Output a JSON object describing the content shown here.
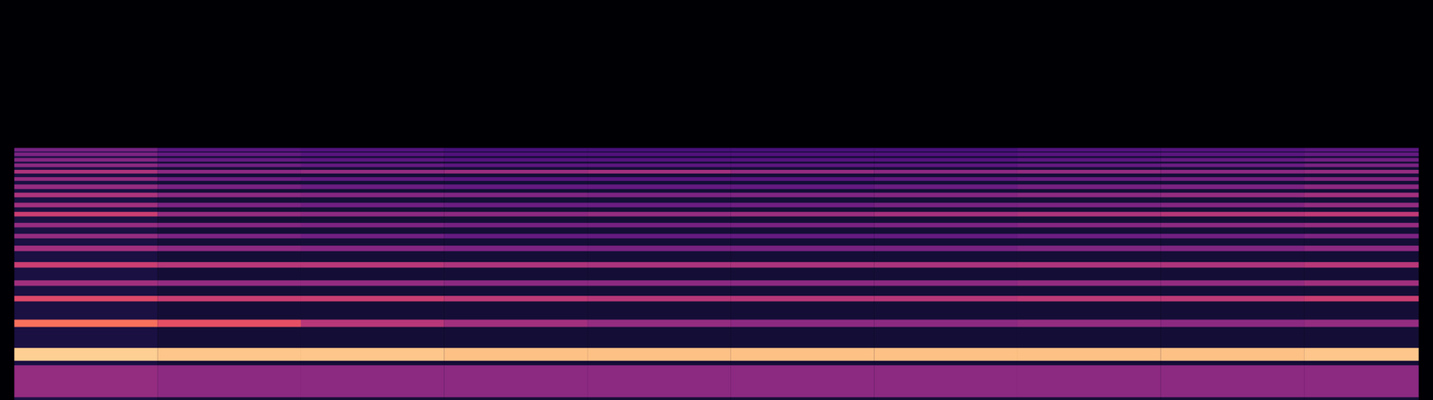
{
  "chart_data": {
    "type": "heatmap",
    "tick_labels": false,
    "xlim": [
      0,
      100
    ],
    "ylim": [
      0,
      438
    ],
    "color_range": [
      0,
      1
    ],
    "x_bins": [
      1,
      11,
      21,
      31,
      41,
      51,
      61,
      71,
      81,
      91,
      99
    ],
    "bands": [
      {
        "y1": 0,
        "y2": 276,
        "values": [
          0.12,
          0.1,
          0.1,
          0.1,
          0.1,
          0.1,
          0.1,
          0.1,
          0.1,
          0.1
        ]
      },
      {
        "y1": 3,
        "y2": 38,
        "values": [
          0.42,
          0.4,
          0.4,
          0.4,
          0.4,
          0.4,
          0.4,
          0.4,
          0.4,
          0.4
        ]
      },
      {
        "y1": 43,
        "y2": 57,
        "values": [
          0.9,
          0.88,
          0.88,
          0.87,
          0.87,
          0.87,
          0.87,
          0.87,
          0.87,
          0.88
        ]
      },
      {
        "y1": 80,
        "y2": 88,
        "values": [
          0.7,
          0.62,
          0.5,
          0.45,
          0.42,
          0.4,
          0.4,
          0.42,
          0.4,
          0.42
        ]
      },
      {
        "y1": 108,
        "y2": 114,
        "values": [
          0.6,
          0.55,
          0.55,
          0.52,
          0.5,
          0.5,
          0.5,
          0.52,
          0.52,
          0.55
        ]
      },
      {
        "y1": 125,
        "y2": 131,
        "values": [
          0.45,
          0.42,
          0.42,
          0.4,
          0.4,
          0.4,
          0.4,
          0.42,
          0.42,
          0.45
        ]
      },
      {
        "y1": 145,
        "y2": 151,
        "values": [
          0.55,
          0.5,
          0.5,
          0.48,
          0.47,
          0.47,
          0.47,
          0.48,
          0.48,
          0.5
        ]
      },
      {
        "y1": 163,
        "y2": 169,
        "values": [
          0.45,
          0.4,
          0.38,
          0.36,
          0.35,
          0.35,
          0.35,
          0.37,
          0.37,
          0.4
        ]
      },
      {
        "y1": 177,
        "y2": 182,
        "values": [
          0.42,
          0.36,
          0.33,
          0.3,
          0.3,
          0.3,
          0.3,
          0.32,
          0.33,
          0.36
        ]
      },
      {
        "y1": 189,
        "y2": 194,
        "values": [
          0.42,
          0.38,
          0.36,
          0.34,
          0.34,
          0.35,
          0.36,
          0.38,
          0.4,
          0.42
        ]
      },
      {
        "y1": 201,
        "y2": 206,
        "values": [
          0.55,
          0.42,
          0.4,
          0.4,
          0.42,
          0.44,
          0.46,
          0.48,
          0.5,
          0.52
        ]
      },
      {
        "y1": 211,
        "y2": 216,
        "values": [
          0.45,
          0.36,
          0.33,
          0.32,
          0.32,
          0.33,
          0.35,
          0.36,
          0.38,
          0.42
        ]
      },
      {
        "y1": 222,
        "y2": 227,
        "values": [
          0.48,
          0.4,
          0.38,
          0.37,
          0.36,
          0.37,
          0.38,
          0.4,
          0.42,
          0.45
        ]
      },
      {
        "y1": 231,
        "y2": 236,
        "values": [
          0.42,
          0.35,
          0.32,
          0.3,
          0.3,
          0.3,
          0.32,
          0.34,
          0.36,
          0.4
        ]
      },
      {
        "y1": 240,
        "y2": 244,
        "values": [
          0.42,
          0.33,
          0.3,
          0.28,
          0.28,
          0.28,
          0.3,
          0.32,
          0.34,
          0.38
        ]
      },
      {
        "y1": 248,
        "y2": 252,
        "values": [
          0.48,
          0.4,
          0.42,
          0.44,
          0.46,
          0.42,
          0.4,
          0.42,
          0.4,
          0.42
        ]
      },
      {
        "y1": 255,
        "y2": 259,
        "values": [
          0.4,
          0.33,
          0.3,
          0.28,
          0.28,
          0.28,
          0.28,
          0.3,
          0.32,
          0.35
        ]
      },
      {
        "y1": 261,
        "y2": 265,
        "values": [
          0.38,
          0.3,
          0.28,
          0.26,
          0.26,
          0.26,
          0.26,
          0.28,
          0.3,
          0.33
        ]
      },
      {
        "y1": 267,
        "y2": 271,
        "values": [
          0.36,
          0.3,
          0.27,
          0.25,
          0.25,
          0.25,
          0.25,
          0.27,
          0.28,
          0.3
        ]
      },
      {
        "y1": 272,
        "y2": 276,
        "values": [
          0.34,
          0.27,
          0.25,
          0.23,
          0.23,
          0.23,
          0.23,
          0.25,
          0.26,
          0.28
        ]
      }
    ]
  }
}
